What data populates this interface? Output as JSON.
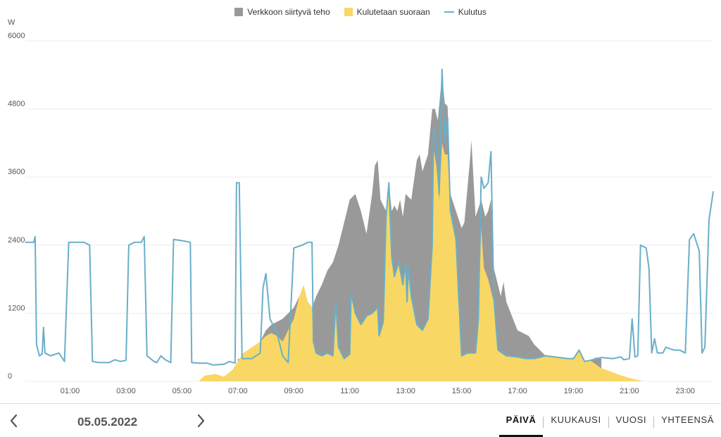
{
  "legend": [
    {
      "label": "Verkkoon siirtyvä teho",
      "color": "#999999",
      "kind": "box"
    },
    {
      "label": "Kulutetaan suoraan",
      "color": "#f9d764",
      "kind": "box"
    },
    {
      "label": "Kulutus",
      "color": "#6aafc8",
      "kind": "line"
    }
  ],
  "footer": {
    "date": "05.05.2022",
    "prev_icon": "chevron-left-icon",
    "next_icon": "chevron-right-icon",
    "tabs": [
      "PÄIVÄ",
      "KUUKAUSI",
      "VUOSI",
      "YHTEENSÄ"
    ],
    "active_tab": 0
  },
  "chart_data": {
    "type": "area",
    "ylabel": "W",
    "ylim": [
      0,
      6000
    ],
    "yticks": [
      0,
      1200,
      2400,
      3600,
      4800,
      6000
    ],
    "xlim": [
      -0.6,
      24.0
    ],
    "xticks": [
      "01:00",
      "03:00",
      "05:00",
      "07:00",
      "09:00",
      "11:00",
      "13:00",
      "15:00",
      "17:00",
      "19:00",
      "21:00",
      "23:00"
    ],
    "xtick_hours": [
      1,
      3,
      5,
      7,
      9,
      11,
      13,
      15,
      17,
      19,
      21,
      23
    ],
    "grid": true,
    "legend_position": "top-center",
    "series": [
      {
        "name": "Kulutus",
        "type": "line",
        "color": "#6aafc8",
        "points": [
          [
            -0.6,
            2450
          ],
          [
            -0.3,
            2450
          ],
          [
            -0.25,
            2550
          ],
          [
            -0.2,
            650
          ],
          [
            -0.1,
            450
          ],
          [
            0,
            480
          ],
          [
            0.05,
            950
          ],
          [
            0.1,
            500
          ],
          [
            0.3,
            450
          ],
          [
            0.6,
            500
          ],
          [
            0.8,
            350
          ],
          [
            0.95,
            2450
          ],
          [
            1.1,
            2450
          ],
          [
            1.5,
            2450
          ],
          [
            1.7,
            2400
          ],
          [
            1.8,
            350
          ],
          [
            2.0,
            330
          ],
          [
            2.4,
            330
          ],
          [
            2.6,
            380
          ],
          [
            2.8,
            350
          ],
          [
            3.0,
            370
          ],
          [
            3.1,
            2400
          ],
          [
            3.3,
            2450
          ],
          [
            3.55,
            2450
          ],
          [
            3.65,
            2550
          ],
          [
            3.75,
            450
          ],
          [
            4.0,
            350
          ],
          [
            4.1,
            330
          ],
          [
            4.25,
            450
          ],
          [
            4.4,
            380
          ],
          [
            4.6,
            330
          ],
          [
            4.7,
            2500
          ],
          [
            5.0,
            2480
          ],
          [
            5.3,
            2450
          ],
          [
            5.35,
            330
          ],
          [
            5.6,
            320
          ],
          [
            5.9,
            320
          ],
          [
            6.1,
            290
          ],
          [
            6.5,
            300
          ],
          [
            6.7,
            350
          ],
          [
            6.9,
            320
          ],
          [
            6.95,
            3500
          ],
          [
            7.05,
            3500
          ],
          [
            7.15,
            400
          ],
          [
            7.5,
            400
          ],
          [
            7.8,
            500
          ],
          [
            7.9,
            1650
          ],
          [
            8.0,
            1900
          ],
          [
            8.15,
            1100
          ],
          [
            8.4,
            850
          ],
          [
            8.6,
            450
          ],
          [
            8.8,
            330
          ],
          [
            9.0,
            2350
          ],
          [
            9.3,
            2400
          ],
          [
            9.5,
            2450
          ],
          [
            9.65,
            2450
          ],
          [
            9.7,
            700
          ],
          [
            9.8,
            500
          ],
          [
            10.0,
            450
          ],
          [
            10.2,
            500
          ],
          [
            10.4,
            450
          ],
          [
            10.5,
            1400
          ],
          [
            10.6,
            600
          ],
          [
            10.8,
            400
          ],
          [
            11.0,
            480
          ],
          [
            11.05,
            1550
          ],
          [
            11.2,
            1200
          ],
          [
            11.4,
            1000
          ],
          [
            11.6,
            1150
          ],
          [
            11.8,
            1200
          ],
          [
            12.0,
            1300
          ],
          [
            12.05,
            800
          ],
          [
            12.2,
            1050
          ],
          [
            12.3,
            2900
          ],
          [
            12.4,
            3500
          ],
          [
            12.5,
            2200
          ],
          [
            12.6,
            1850
          ],
          [
            12.75,
            2100
          ],
          [
            12.9,
            1700
          ],
          [
            13.0,
            2100
          ],
          [
            13.05,
            1400
          ],
          [
            13.1,
            2000
          ],
          [
            13.2,
            1500
          ],
          [
            13.4,
            1000
          ],
          [
            13.6,
            900
          ],
          [
            13.8,
            1100
          ],
          [
            13.95,
            2400
          ],
          [
            14.0,
            4450
          ],
          [
            14.1,
            4200
          ],
          [
            14.2,
            3300
          ],
          [
            14.3,
            5500
          ],
          [
            14.4,
            4200
          ],
          [
            14.5,
            4650
          ],
          [
            14.6,
            3000
          ],
          [
            14.8,
            2500
          ],
          [
            15.0,
            450
          ],
          [
            15.2,
            500
          ],
          [
            15.5,
            500
          ],
          [
            15.6,
            1100
          ],
          [
            15.7,
            3600
          ],
          [
            15.8,
            3400
          ],
          [
            15.95,
            3500
          ],
          [
            16.05,
            4050
          ],
          [
            16.15,
            1500
          ],
          [
            16.3,
            550
          ],
          [
            16.6,
            450
          ],
          [
            17.0,
            430
          ],
          [
            17.3,
            400
          ],
          [
            17.6,
            400
          ],
          [
            18.0,
            450
          ],
          [
            18.5,
            420
          ],
          [
            18.8,
            400
          ],
          [
            19.0,
            400
          ],
          [
            19.2,
            550
          ],
          [
            19.4,
            350
          ],
          [
            19.6,
            370
          ],
          [
            20.0,
            420
          ],
          [
            20.4,
            400
          ],
          [
            20.7,
            430
          ],
          [
            20.8,
            380
          ],
          [
            21.0,
            400
          ],
          [
            21.1,
            1100
          ],
          [
            21.2,
            430
          ],
          [
            21.3,
            450
          ],
          [
            21.4,
            2400
          ],
          [
            21.6,
            2350
          ],
          [
            21.7,
            2000
          ],
          [
            21.8,
            500
          ],
          [
            21.9,
            750
          ],
          [
            22.0,
            500
          ],
          [
            22.2,
            500
          ],
          [
            22.3,
            600
          ],
          [
            22.6,
            550
          ],
          [
            22.8,
            550
          ],
          [
            23.0,
            500
          ],
          [
            23.15,
            2500
          ],
          [
            23.3,
            2600
          ],
          [
            23.5,
            2300
          ],
          [
            23.6,
            500
          ],
          [
            23.7,
            600
          ],
          [
            23.85,
            2850
          ],
          [
            24.0,
            3350
          ]
        ]
      },
      {
        "name": "Kulutetaan suoraan",
        "type": "area",
        "color": "#f9d764",
        "points": [
          [
            5.6,
            0
          ],
          [
            5.8,
            100
          ],
          [
            6.2,
            130
          ],
          [
            6.5,
            80
          ],
          [
            6.8,
            200
          ],
          [
            7.0,
            350
          ],
          [
            7.2,
            500
          ],
          [
            7.5,
            600
          ],
          [
            7.8,
            700
          ],
          [
            8.0,
            800
          ],
          [
            8.2,
            850
          ],
          [
            8.4,
            800
          ],
          [
            8.6,
            700
          ],
          [
            8.8,
            900
          ],
          [
            9.0,
            1100
          ],
          [
            9.2,
            1500
          ],
          [
            9.35,
            1700
          ],
          [
            9.5,
            1400
          ],
          [
            9.65,
            1300
          ],
          [
            9.7,
            700
          ],
          [
            9.8,
            500
          ],
          [
            10.0,
            450
          ],
          [
            10.2,
            500
          ],
          [
            10.4,
            450
          ],
          [
            10.5,
            1400
          ],
          [
            10.6,
            600
          ],
          [
            10.8,
            400
          ],
          [
            11.0,
            480
          ],
          [
            11.05,
            1550
          ],
          [
            11.2,
            1200
          ],
          [
            11.4,
            1000
          ],
          [
            11.6,
            1150
          ],
          [
            11.8,
            1200
          ],
          [
            12.0,
            1300
          ],
          [
            12.05,
            800
          ],
          [
            12.2,
            1050
          ],
          [
            12.3,
            2900
          ],
          [
            12.4,
            3500
          ],
          [
            12.5,
            2200
          ],
          [
            12.6,
            1850
          ],
          [
            12.75,
            2100
          ],
          [
            12.9,
            1700
          ],
          [
            13.0,
            2100
          ],
          [
            13.05,
            1400
          ],
          [
            13.1,
            2000
          ],
          [
            13.2,
            1500
          ],
          [
            13.4,
            1000
          ],
          [
            13.6,
            900
          ],
          [
            13.8,
            1100
          ],
          [
            13.95,
            2400
          ],
          [
            14.0,
            4100
          ],
          [
            14.1,
            3800
          ],
          [
            14.2,
            3200
          ],
          [
            14.3,
            4200
          ],
          [
            14.4,
            4000
          ],
          [
            14.5,
            4000
          ],
          [
            14.6,
            3000
          ],
          [
            14.8,
            2500
          ],
          [
            15.0,
            450
          ],
          [
            15.2,
            500
          ],
          [
            15.5,
            500
          ],
          [
            15.6,
            1100
          ],
          [
            15.7,
            2700
          ],
          [
            15.8,
            2000
          ],
          [
            15.95,
            1800
          ],
          [
            16.05,
            1600
          ],
          [
            16.15,
            1400
          ],
          [
            16.3,
            550
          ],
          [
            16.6,
            450
          ],
          [
            17.0,
            430
          ],
          [
            17.3,
            400
          ],
          [
            17.6,
            400
          ],
          [
            18.0,
            450
          ],
          [
            18.5,
            420
          ],
          [
            18.8,
            400
          ],
          [
            19.0,
            400
          ],
          [
            19.2,
            550
          ],
          [
            19.4,
            350
          ],
          [
            19.6,
            370
          ],
          [
            19.8,
            300
          ],
          [
            20.0,
            230
          ],
          [
            20.3,
            180
          ],
          [
            20.6,
            120
          ],
          [
            21.0,
            60
          ],
          [
            21.5,
            0
          ]
        ]
      },
      {
        "name": "Verkkoon siirtyvä teho",
        "type": "area",
        "color": "#999999",
        "points": [
          [
            7.0,
            400
          ],
          [
            7.3,
            350
          ],
          [
            7.6,
            500
          ],
          [
            7.8,
            700
          ],
          [
            8.0,
            900
          ],
          [
            8.2,
            1000
          ],
          [
            8.6,
            1100
          ],
          [
            9.0,
            1300
          ],
          [
            9.2,
            1500
          ],
          [
            9.5,
            1400
          ],
          [
            9.65,
            1300
          ],
          [
            9.8,
            1500
          ],
          [
            10.0,
            1700
          ],
          [
            10.2,
            1950
          ],
          [
            10.4,
            2100
          ],
          [
            10.6,
            2400
          ],
          [
            10.8,
            2800
          ],
          [
            11.0,
            3200
          ],
          [
            11.2,
            3300
          ],
          [
            11.4,
            3000
          ],
          [
            11.6,
            2600
          ],
          [
            11.8,
            3300
          ],
          [
            11.9,
            3800
          ],
          [
            12.0,
            3900
          ],
          [
            12.1,
            3200
          ],
          [
            12.3,
            3000
          ],
          [
            12.4,
            3500
          ],
          [
            12.5,
            3000
          ],
          [
            12.6,
            3100
          ],
          [
            12.7,
            3000
          ],
          [
            12.8,
            3200
          ],
          [
            12.9,
            2900
          ],
          [
            13.0,
            3300
          ],
          [
            13.2,
            3200
          ],
          [
            13.4,
            3900
          ],
          [
            13.5,
            4000
          ],
          [
            13.6,
            3700
          ],
          [
            13.8,
            4000
          ],
          [
            13.95,
            4800
          ],
          [
            14.05,
            4800
          ],
          [
            14.15,
            4600
          ],
          [
            14.3,
            5400
          ],
          [
            14.4,
            4900
          ],
          [
            14.5,
            4850
          ],
          [
            14.6,
            3300
          ],
          [
            14.8,
            3000
          ],
          [
            15.0,
            2700
          ],
          [
            15.1,
            2800
          ],
          [
            15.3,
            3900
          ],
          [
            15.35,
            4250
          ],
          [
            15.5,
            2900
          ],
          [
            15.7,
            3200
          ],
          [
            15.85,
            2900
          ],
          [
            15.95,
            3000
          ],
          [
            16.05,
            3200
          ],
          [
            16.15,
            2000
          ],
          [
            16.3,
            1700
          ],
          [
            16.4,
            1500
          ],
          [
            16.5,
            1750
          ],
          [
            16.6,
            1400
          ],
          [
            16.8,
            1150
          ],
          [
            17.0,
            900
          ],
          [
            17.2,
            850
          ],
          [
            17.4,
            800
          ],
          [
            17.6,
            650
          ],
          [
            17.8,
            550
          ],
          [
            18.0,
            450
          ],
          [
            18.5,
            420
          ],
          [
            18.8,
            400
          ],
          [
            19.0,
            400
          ],
          [
            19.2,
            550
          ],
          [
            19.4,
            350
          ],
          [
            19.6,
            370
          ],
          [
            19.8,
            420
          ],
          [
            20.0,
            400
          ]
        ]
      }
    ]
  }
}
